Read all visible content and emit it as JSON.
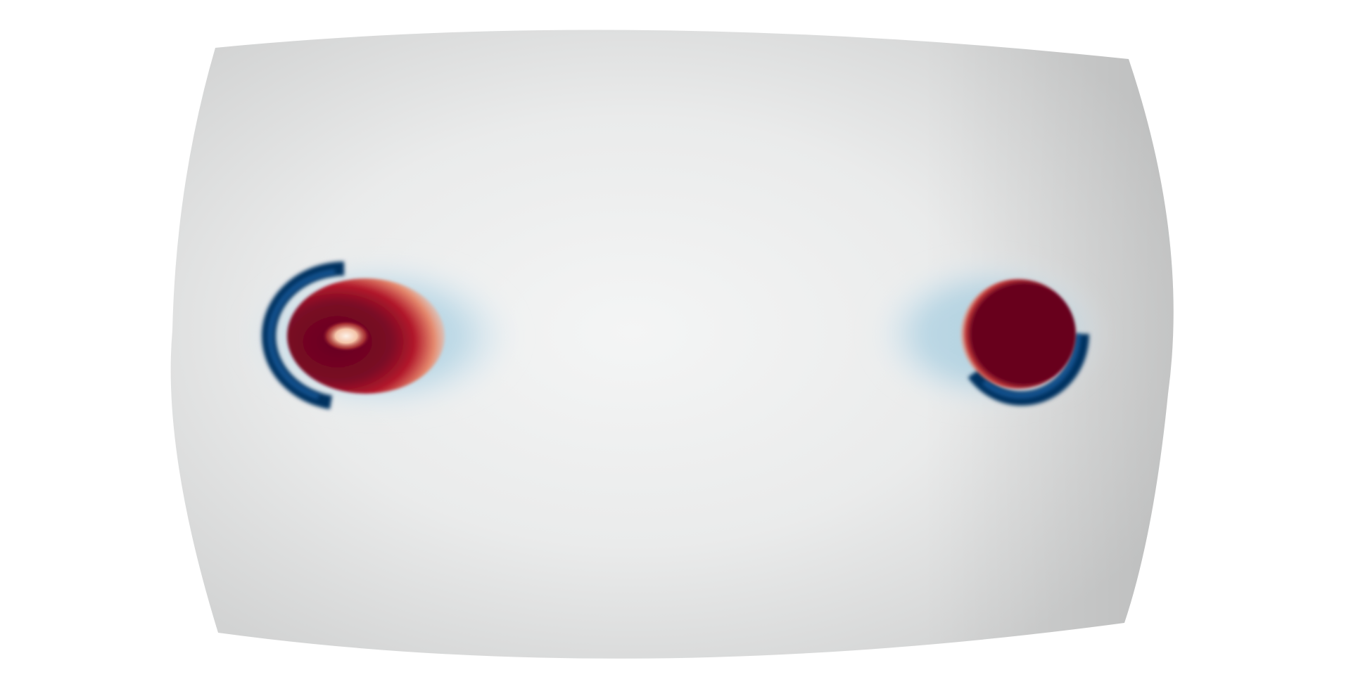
{
  "scene": {
    "background_color": "#ffffff",
    "surface_colors": {
      "center": "#f4f5f5",
      "mid": "#e8e8e8",
      "edge": "#c8c9c9"
    },
    "colormap": {
      "deep_red": "#67001f",
      "red": "#b2182b",
      "light_red": "#f4a582",
      "white": "#f7f7f7",
      "light_blue": "#92c5de",
      "blue": "#2166ac",
      "deep_blue": "#053061"
    },
    "features": [
      {
        "name": "left-vortex",
        "core_color": "#67001f",
        "ring_color": "#053061",
        "highlight_color": "#fbe8dc"
      },
      {
        "name": "right-vortex",
        "core_color": "#67001f",
        "ring_color": "#053061"
      }
    ]
  }
}
